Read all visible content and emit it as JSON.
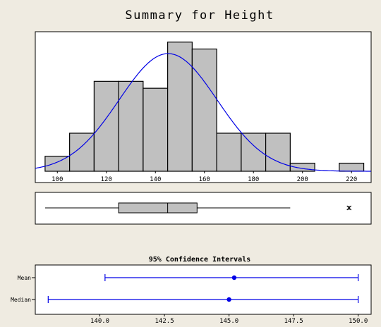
{
  "page": {
    "title": "Summary for Height"
  },
  "colors": {
    "background": "#efebe1",
    "panel": "#ffffff",
    "bar_fill": "#c0c0c0",
    "curve": "#0000e6",
    "interval": "#0000e6"
  },
  "chart_data": [
    {
      "type": "bar",
      "subtype": "histogram",
      "x_tick_labels": [
        "100",
        "120",
        "140",
        "160",
        "180",
        "200",
        "220"
      ],
      "xlim": [
        91,
        228
      ],
      "ylim": [
        0,
        11
      ],
      "bins": [
        {
          "from": 95,
          "to": 105,
          "count": 1.3
        },
        {
          "from": 105,
          "to": 115,
          "count": 3.3
        },
        {
          "from": 115,
          "to": 125,
          "count": 7.8
        },
        {
          "from": 125,
          "to": 135,
          "count": 7.8
        },
        {
          "from": 135,
          "to": 145,
          "count": 7.2
        },
        {
          "from": 145,
          "to": 155,
          "count": 11.2
        },
        {
          "from": 155,
          "to": 165,
          "count": 10.6
        },
        {
          "from": 165,
          "to": 175,
          "count": 3.3
        },
        {
          "from": 175,
          "to": 185,
          "count": 3.3
        },
        {
          "from": 185,
          "to": 195,
          "count": 3.3
        },
        {
          "from": 195,
          "to": 205,
          "count": 0.7
        },
        {
          "from": 215,
          "to": 225,
          "count": 0.7
        }
      ],
      "normal_curve": {
        "mean": 145.2,
        "sd": 20,
        "peak": 10.2
      },
      "grid": false,
      "legend": "none"
    },
    {
      "type": "boxplot",
      "xlim": [
        91,
        228
      ],
      "whisker_low": 95,
      "q1": 125,
      "median": 145,
      "q3": 157,
      "whisker_high": 195,
      "outliers": [
        219
      ]
    },
    {
      "type": "interval",
      "title": "95% Confidence Intervals",
      "xlim": [
        137.5,
        150.5
      ],
      "x_tick_labels": [
        "140.0",
        "142.5",
        "145.0",
        "147.5",
        "150.0"
      ],
      "x_tick_values": [
        140.0,
        142.5,
        145.0,
        147.5,
        150.0
      ],
      "intervals": [
        {
          "label": "Mean",
          "lower": 140.2,
          "estimate": 145.2,
          "upper": 150.0
        },
        {
          "label": "Median",
          "lower": 138.0,
          "estimate": 145.0,
          "upper": 150.0
        }
      ]
    }
  ]
}
